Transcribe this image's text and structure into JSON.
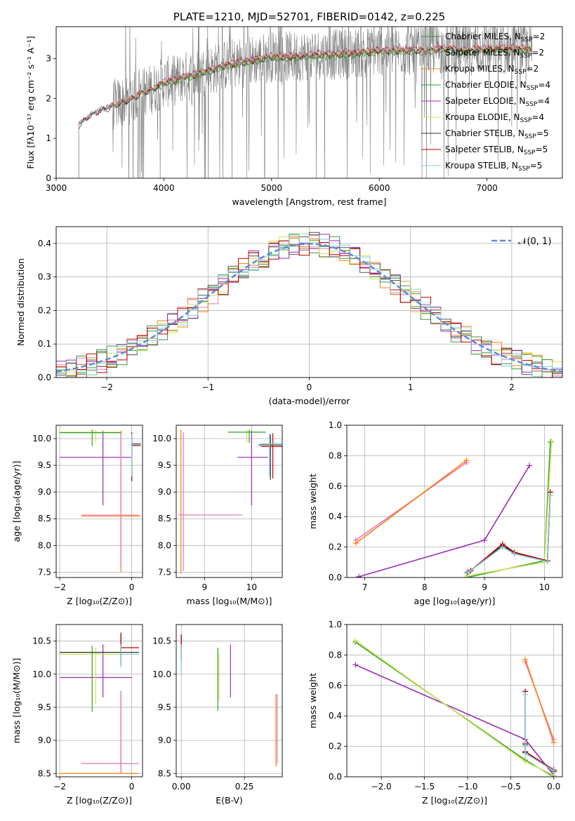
{
  "chart_data": [
    {
      "id": "spectrum",
      "type": "line",
      "title": "PLATE=1210, MJD=52701, FIBERID=0142, z=0.225",
      "xlabel": "wavelength [Angstrom, rest frame]",
      "ylabel": "Flux [f$_\\lambda$10$^{-17}$ erg cm$^{-2}$ s$^{-1}$ A$^{-1}$]",
      "ylabel_display": "Flux [fλ10⁻¹⁷ erg cm⁻² s⁻¹ A⁻¹]",
      "xlim": [
        3000,
        7700
      ],
      "ylim": [
        0,
        3.8
      ],
      "xticks": [
        3000,
        4000,
        5000,
        6000,
        7000
      ],
      "yticks": [
        0,
        1,
        2,
        3
      ],
      "legend_position": "top-right",
      "data_color": "#808080",
      "continuum": {
        "x": [
          3210,
          3300,
          3400,
          3500,
          3600,
          3700,
          3800,
          3900,
          4000,
          4100,
          4200,
          4300,
          4400,
          4600,
          4800,
          5000,
          5200,
          5400,
          5600,
          5800,
          6000,
          6200,
          6400,
          6600,
          6800,
          7000,
          7200,
          7400
        ],
        "y": [
          1.35,
          1.55,
          1.7,
          1.8,
          1.9,
          2.0,
          2.15,
          2.25,
          2.4,
          2.45,
          2.55,
          2.6,
          2.7,
          2.85,
          2.95,
          3.05,
          3.05,
          3.1,
          3.1,
          3.15,
          3.2,
          3.2,
          3.2,
          3.25,
          3.2,
          3.25,
          3.25,
          3.25
        ]
      },
      "series": [
        {
          "name": "Chabrier MILES, N$_{SSP}$=2",
          "label_text": "Chabrier MILES, N",
          "label_sub": "SSP",
          "label_tail": "=2",
          "color": "#2ca02c",
          "start": 3540,
          "offset": -0.02
        },
        {
          "name": "Salpeter MILES, N$_{SSP}$=2",
          "label_text": "Salpeter MILES, N",
          "label_sub": "SSP",
          "label_tail": "=2",
          "color": "#e377c2",
          "start": 3540,
          "offset": 0.01
        },
        {
          "name": "Kroupa MILES, N$_{SSP}$=2",
          "label_text": "Kroupa MILES, N",
          "label_sub": "SSP",
          "label_tail": "=2",
          "color": "#ff7f0e",
          "start": 3540,
          "offset": 0.02
        },
        {
          "name": "Chabrier ELODIE, N$_{SSP}$=4",
          "label_text": "Chabrier ELODIE, N",
          "label_sub": "SSP",
          "label_tail": "=4",
          "color": "#2ca02c",
          "start": 3900,
          "offset": -0.05
        },
        {
          "name": "Salpeter ELODIE, N$_{SSP}$=4",
          "label_text": "Salpeter ELODIE, N",
          "label_sub": "SSP",
          "label_tail": "=4",
          "color": "#9b2ab5",
          "start": 3900,
          "offset": 0.03
        },
        {
          "name": "Kroupa ELODIE, N$_{SSP}$=4",
          "label_text": "Kroupa ELODIE, N",
          "label_sub": "SSP",
          "label_tail": "=4",
          "color": "#d4e157",
          "start": 3900,
          "offset": 0.0
        },
        {
          "name": "Chabrier STELIB, N$_{SSP}$=5",
          "label_text": "Chabrier STELIB, N",
          "label_sub": "SSP",
          "label_tail": "=5",
          "color": "#333333",
          "start": 3210,
          "offset": -0.03
        },
        {
          "name": "Salpeter STELIB, N$_{SSP}$=5",
          "label_text": "Salpeter STELIB, N",
          "label_sub": "SSP",
          "label_tail": "=5",
          "color": "#c00000",
          "start": 3210,
          "offset": 0.0
        },
        {
          "name": "Kroupa STELIB, N$_{SSP}$=5",
          "label_text": "Kroupa STELIB, N",
          "label_sub": "SSP",
          "label_tail": "=5",
          "color": "#80cbd6",
          "start": 3210,
          "offset": 0.01
        }
      ]
    },
    {
      "id": "residuals",
      "type": "line",
      "title": "",
      "xlabel": "(data-model)/error",
      "ylabel": "Normed distribution",
      "xlim": [
        -2.5,
        2.5
      ],
      "ylim": [
        0,
        0.45
      ],
      "xticks": [
        -2,
        -1,
        0,
        1,
        2
      ],
      "yticks": [
        0.0,
        0.1,
        0.2,
        0.3,
        0.4
      ],
      "grid": true,
      "legend_position": "top-right",
      "gaussian": {
        "name": "$\\mathcal{N}(0,1)$",
        "label_display": "𝒩(0, 1)",
        "color": "#5b8ddb",
        "mean": 0,
        "sigma": 1
      },
      "bin_width": 0.1,
      "series_colors": [
        "#2ca02c",
        "#e377c2",
        "#ff7f0e",
        "#4c8c4a",
        "#9b2ab5",
        "#d4e157",
        "#555555",
        "#c00000",
        "#80cbd6"
      ]
    },
    {
      "id": "age_vs_Z",
      "type": "scatter",
      "xlabel": "Z [log$_{10}$(Z/Z$_\\odot$)]",
      "xlabel_display": "Z [log₁₀(Z/Z⊙)]",
      "ylabel": "age  [log$_{10}$(age/yr)]",
      "ylabel_display": "age  [log₁₀(age/yr)]",
      "xlim": [
        -2.1,
        0.3
      ],
      "ylim": [
        7.4,
        10.25
      ],
      "xticks": [
        -2,
        0
      ],
      "yticks": [
        7.5,
        8.0,
        8.5,
        9.0,
        9.5,
        10.0
      ],
      "grid": true,
      "points": [
        {
          "color": "#9b2ab5",
          "x": -0.8,
          "y": 9.65,
          "xerr": [
            1.2,
            0.8
          ],
          "yerr": [
            0.9,
            0.5
          ]
        },
        {
          "color": "#ff7f0e",
          "x": -0.3,
          "y": 8.55,
          "xerr": [
            1.1,
            0.55
          ],
          "yerr": [
            1.05,
            1.6
          ]
        },
        {
          "color": "#e377c2",
          "x": -0.3,
          "y": 8.57,
          "xerr": [
            1.1,
            0.5
          ],
          "yerr": [
            1.0,
            1.55
          ]
        },
        {
          "color": "#d4e157",
          "x": -1.0,
          "y": 10.12,
          "xerr": [
            1.05,
            0.75
          ],
          "yerr": [
            0.2,
            0.05
          ]
        },
        {
          "color": "#2ca02c",
          "x": -1.1,
          "y": 10.11,
          "xerr": [
            0.9,
            0.8
          ],
          "yerr": [
            0.25,
            0.06
          ]
        },
        {
          "color": "#333333",
          "x": 0.0,
          "y": 9.9,
          "xerr": [
            0.0,
            0.25
          ],
          "yerr": [
            0.7,
            0.2
          ]
        },
        {
          "color": "#c00000",
          "x": 0.0,
          "y": 9.87,
          "xerr": [
            0.0,
            0.25
          ],
          "yerr": [
            0.65,
            0.25
          ]
        },
        {
          "color": "#80cbd6",
          "x": 0.0,
          "y": 9.89,
          "xerr": [
            0.0,
            0.25
          ],
          "yerr": [
            0.6,
            0.2
          ]
        }
      ]
    },
    {
      "id": "age_vs_mass",
      "type": "scatter",
      "xlabel": "mass [log$_{10}$(M/M$_\\odot$)]",
      "xlabel_display": "mass [log₁₀(M/M⊙)]",
      "ylabel": "",
      "xlim": [
        8.4,
        10.65
      ],
      "ylim": [
        7.4,
        10.25
      ],
      "xticks": [
        9,
        10
      ],
      "yticks": [
        7.5,
        8.0,
        8.5,
        9.0,
        9.5,
        10.0
      ],
      "grid": true,
      "points": [
        {
          "color": "#9b2ab5",
          "x": 10.0,
          "y": 9.65,
          "xerr": [
            0.3,
            0.35
          ],
          "yerr": [
            0.9,
            0.5
          ]
        },
        {
          "color": "#ff7f0e",
          "x": 8.5,
          "y": 8.57,
          "xerr": [
            0.0,
            1.2
          ],
          "yerr": [
            1.1,
            1.6
          ]
        },
        {
          "color": "#e377c2",
          "x": 8.55,
          "y": 8.57,
          "xerr": [
            0.1,
            1.25
          ],
          "yerr": [
            1.05,
            1.55
          ]
        },
        {
          "color": "#d4e157",
          "x": 9.9,
          "y": 10.12,
          "xerr": [
            0.4,
            0.4
          ],
          "yerr": [
            0.2,
            0.05
          ]
        },
        {
          "color": "#2ca02c",
          "x": 9.95,
          "y": 10.12,
          "xerr": [
            0.45,
            0.35
          ],
          "yerr": [
            0.2,
            0.05
          ]
        },
        {
          "color": "#333333",
          "x": 10.4,
          "y": 9.88,
          "xerr": [
            0.25,
            0.25
          ],
          "yerr": [
            0.65,
            0.2
          ]
        },
        {
          "color": "#c00000",
          "x": 10.45,
          "y": 9.85,
          "xerr": [
            0.25,
            0.25
          ],
          "yerr": [
            0.6,
            0.25
          ]
        },
        {
          "color": "#80cbd6",
          "x": 10.38,
          "y": 9.9,
          "xerr": [
            0.2,
            0.25
          ],
          "yerr": [
            0.6,
            0.2
          ]
        }
      ]
    },
    {
      "id": "weight_vs_age",
      "type": "line",
      "xlabel": "age  [log$_{10}$(age/yr)]",
      "xlabel_display": "age  [log₁₀(age/yr)]",
      "ylabel": "mass weight",
      "xlim": [
        6.7,
        10.3
      ],
      "ylim": [
        0,
        1.0
      ],
      "xticks": [
        7,
        8,
        9,
        10
      ],
      "yticks": [
        0.0,
        0.2,
        0.4,
        0.6,
        0.8,
        1.0
      ],
      "grid": true,
      "series": [
        {
          "color": "#e377c2",
          "x": [
            6.85,
            8.7
          ],
          "y": [
            0.245,
            0.755
          ]
        },
        {
          "color": "#ff7f0e",
          "x": [
            6.85,
            8.7
          ],
          "y": [
            0.225,
            0.77
          ]
        },
        {
          "color": "#9b2ab5",
          "x": [
            6.9,
            9.0,
            9.75
          ],
          "y": [
            0.005,
            0.245,
            0.735
          ]
        },
        {
          "color": "#2ca02c",
          "x": [
            8.7,
            10.0,
            10.1
          ],
          "y": [
            0.0,
            0.11,
            0.89
          ]
        },
        {
          "color": "#d4e157",
          "x": [
            8.7,
            10.0,
            10.12
          ],
          "y": [
            0.01,
            0.1,
            0.895
          ]
        },
        {
          "color": "#333333",
          "x": [
            8.7,
            8.75,
            9.3,
            9.5,
            10.05,
            10.1
          ],
          "y": [
            0.03,
            0.04,
            0.21,
            0.16,
            0.11,
            0.56
          ]
        },
        {
          "color": "#c00000",
          "x": [
            8.72,
            8.77,
            9.3,
            9.5,
            10.05,
            10.1
          ],
          "y": [
            0.035,
            0.045,
            0.22,
            0.165,
            0.11,
            0.56
          ]
        },
        {
          "color": "#80cbd6",
          "x": [
            8.7,
            8.75,
            9.3,
            9.5,
            10.05,
            10.1
          ],
          "y": [
            0.03,
            0.04,
            0.2,
            0.155,
            0.105,
            0.54
          ]
        }
      ]
    },
    {
      "id": "mass_vs_Z",
      "type": "scatter",
      "xlabel": "Z [log$_{10}$(Z/Z$_\\odot$)]",
      "xlabel_display": "Z [log₁₀(Z/Z⊙)]",
      "ylabel": "mass [log$_{10}$(M/M$_\\odot$)]",
      "ylabel_display": "mass [log₁₀(M/M⊙)]",
      "xlim": [
        -2.1,
        0.3
      ],
      "ylim": [
        8.45,
        10.75
      ],
      "xticks": [
        -2,
        0
      ],
      "yticks": [
        8.5,
        9.0,
        9.5,
        10.0,
        10.5
      ],
      "grid": true,
      "points": [
        {
          "color": "#9b2ab5",
          "x": -0.8,
          "y": 9.95,
          "xerr": [
            1.2,
            0.8
          ],
          "yerr": [
            0.3,
            0.5
          ]
        },
        {
          "color": "#ff7f0e",
          "x": -0.3,
          "y": 8.5,
          "xerr": [
            1.7,
            0.5
          ],
          "yerr": [
            0.0,
            1.25
          ]
        },
        {
          "color": "#e377c2",
          "x": -0.3,
          "y": 8.65,
          "xerr": [
            1.1,
            0.5
          ],
          "yerr": [
            0.15,
            1.1
          ]
        },
        {
          "color": "#d4e157",
          "x": -1.0,
          "y": 10.3,
          "xerr": [
            1.05,
            0.75
          ],
          "yerr": [
            0.75,
            0.1
          ]
        },
        {
          "color": "#2ca02c",
          "x": -1.1,
          "y": 10.33,
          "xerr": [
            0.9,
            0.8
          ],
          "yerr": [
            0.9,
            0.1
          ]
        },
        {
          "color": "#333333",
          "x": -0.3,
          "y": 10.33,
          "xerr": [
            1.7,
            0.5
          ],
          "yerr": [
            0.2,
            0.3
          ]
        },
        {
          "color": "#c00000",
          "x": -0.3,
          "y": 10.4,
          "xerr": [
            0.0,
            0.5
          ],
          "yerr": [
            0.2,
            0.2
          ]
        },
        {
          "color": "#80cbd6",
          "x": -0.3,
          "y": 10.3,
          "xerr": [
            0.0,
            0.5
          ],
          "yerr": [
            0.2,
            0.15
          ]
        }
      ]
    },
    {
      "id": "mass_vs_EBV",
      "type": "scatter",
      "xlabel": "E(B-V)",
      "ylabel": "",
      "xlim": [
        -0.02,
        0.4
      ],
      "ylim": [
        8.45,
        10.75
      ],
      "xticks": [
        0.0,
        0.25
      ],
      "xtick_labels": [
        "0.00",
        "0.25"
      ],
      "yticks": [
        8.5,
        9.0,
        9.5,
        10.0,
        10.5
      ],
      "grid": true,
      "points": [
        {
          "color": "#333333",
          "x": 0.0,
          "y": 10.35,
          "yerr": [
            0.15,
            0.25
          ]
        },
        {
          "color": "#c00000",
          "x": 0.0,
          "y": 10.4,
          "yerr": [
            0.1,
            0.2
          ]
        },
        {
          "color": "#80cbd6",
          "x": 0.0,
          "y": 10.3,
          "yerr": [
            0.3,
            0.15
          ]
        },
        {
          "color": "#2ca02c",
          "x": 0.145,
          "y": 10.0,
          "yerr": [
            0.55,
            0.4
          ]
        },
        {
          "color": "#d4e157",
          "x": 0.15,
          "y": 10.0,
          "yerr": [
            0.4,
            0.3
          ]
        },
        {
          "color": "#9b2ab5",
          "x": 0.195,
          "y": 10.1,
          "yerr": [
            0.45,
            0.35
          ]
        },
        {
          "color": "#e377c2",
          "x": 0.38,
          "y": 9.2,
          "yerr": [
            0.55,
            0.5
          ]
        },
        {
          "color": "#ff7f0e",
          "x": 0.375,
          "y": 9.15,
          "yerr": [
            0.55,
            0.55
          ]
        }
      ]
    },
    {
      "id": "weight_vs_Z",
      "type": "line",
      "xlabel": "Z [log$_{10}$(Z/Z$_\\odot$)]",
      "xlabel_display": "Z [log₁₀(Z/Z⊙)]",
      "ylabel": "mass weight",
      "xlim": [
        -2.4,
        0.1
      ],
      "ylim": [
        0,
        1.0
      ],
      "xticks": [
        -2.0,
        -1.5,
        -1.0,
        -0.5,
        0.0
      ],
      "xtick_labels": [
        "−2.0",
        "−1.5",
        "−1.0",
        "−0.5",
        "0.0"
      ],
      "yticks": [
        0.0,
        0.2,
        0.4,
        0.6,
        0.8,
        1.0
      ],
      "grid": true,
      "series": [
        {
          "color": "#e377c2",
          "x": [
            -0.33,
            0.0
          ],
          "y": [
            0.755,
            0.245
          ]
        },
        {
          "color": "#ff7f0e",
          "x": [
            -0.33,
            0.0
          ],
          "y": [
            0.77,
            0.225
          ]
        },
        {
          "color": "#9b2ab5",
          "x": [
            -2.3,
            -0.33,
            0.0
          ],
          "y": [
            0.735,
            0.245,
            0.01
          ]
        },
        {
          "color": "#2ca02c",
          "x": [
            -2.3,
            -0.33,
            0.0
          ],
          "y": [
            0.885,
            0.11,
            0.0
          ]
        },
        {
          "color": "#d4e157",
          "x": [
            -2.3,
            -0.33,
            0.0
          ],
          "y": [
            0.895,
            0.1,
            0.01
          ]
        },
        {
          "color": "#333333",
          "x": [
            -0.33,
            -0.33,
            -0.33,
            0.0,
            0.0
          ],
          "y": [
            0.56,
            0.21,
            0.16,
            0.04,
            0.03
          ]
        },
        {
          "color": "#c00000",
          "x": [
            -0.33,
            -0.33,
            -0.33,
            0.0,
            0.0
          ],
          "y": [
            0.56,
            0.22,
            0.165,
            0.045,
            0.035
          ]
        },
        {
          "color": "#80cbd6",
          "x": [
            -0.33,
            -0.33,
            -0.33,
            0.0,
            0.0
          ],
          "y": [
            0.54,
            0.2,
            0.155,
            0.04,
            0.03
          ]
        }
      ]
    }
  ]
}
